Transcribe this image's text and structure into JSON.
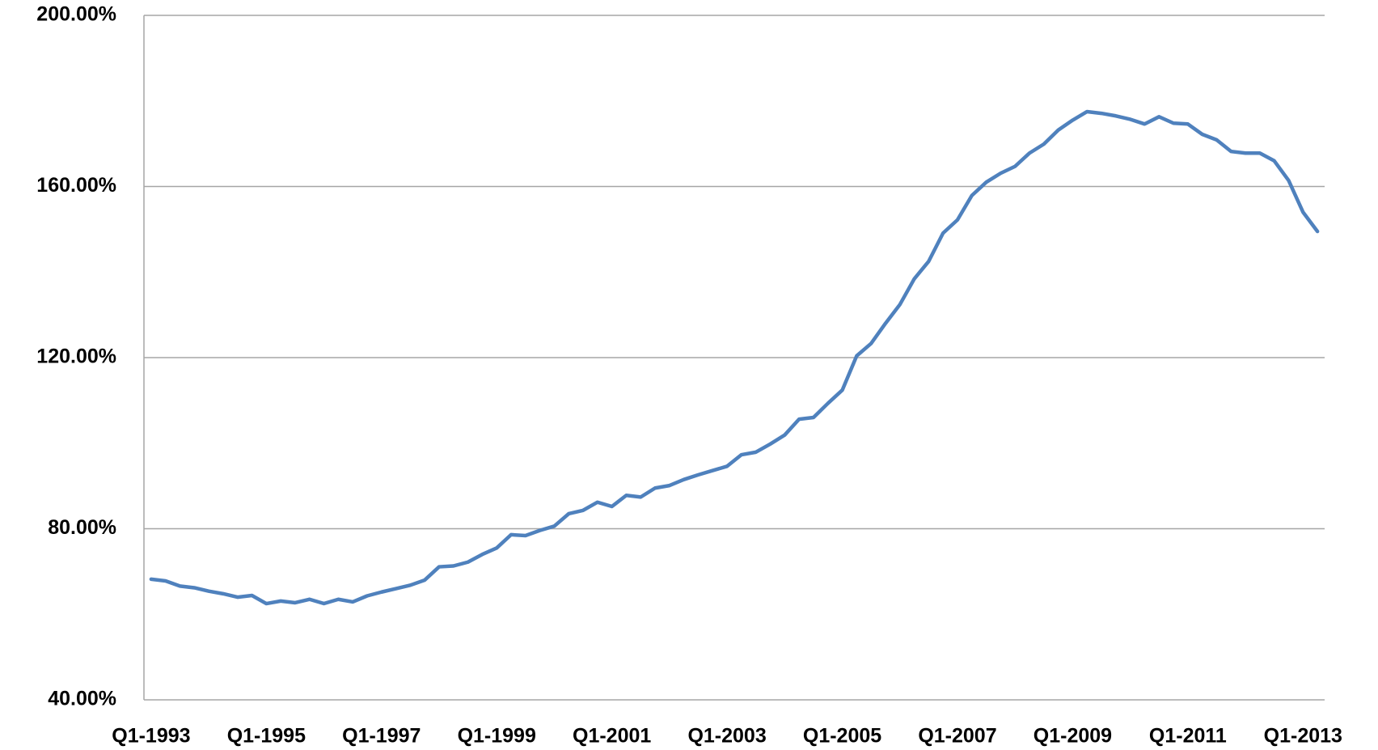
{
  "chart_data": {
    "type": "line",
    "categories": [
      "Q1-1993",
      null,
      null,
      null,
      null,
      null,
      null,
      null,
      "Q1-1995",
      null,
      null,
      null,
      null,
      null,
      null,
      null,
      "Q1-1997",
      null,
      null,
      null,
      null,
      null,
      null,
      null,
      "Q1-1999",
      null,
      null,
      null,
      null,
      null,
      null,
      null,
      "Q1-2001",
      null,
      null,
      null,
      null,
      null,
      null,
      null,
      "Q1-2003",
      null,
      null,
      null,
      null,
      null,
      null,
      null,
      "Q1-2005",
      null,
      null,
      null,
      null,
      null,
      null,
      null,
      "Q1-2007",
      null,
      null,
      null,
      null,
      null,
      null,
      null,
      "Q1-2009",
      null,
      null,
      null,
      null,
      null,
      null,
      null,
      "Q1-2011",
      null,
      null,
      null,
      null,
      null,
      null,
      null,
      "Q1-2013",
      null
    ],
    "series": [
      {
        "color": "#4f81bd",
        "values": [
          68.2,
          67.8,
          66.6,
          66.2,
          65.4,
          64.8,
          64.0,
          64.4,
          62.5,
          63.1,
          62.7,
          63.5,
          62.5,
          63.5,
          62.9,
          64.3,
          65.2,
          66.0,
          66.8,
          68.0,
          71.1,
          71.3,
          72.2,
          74.0,
          75.5,
          78.6,
          78.4,
          79.6,
          80.6,
          83.5,
          84.3,
          86.2,
          85.2,
          87.8,
          87.4,
          89.5,
          90.1,
          91.5,
          92.6,
          93.6,
          94.6,
          97.3,
          97.9,
          99.8,
          101.9,
          105.6,
          106.0,
          109.3,
          112.4,
          120.4,
          123.3,
          128.0,
          132.4,
          138.4,
          142.5,
          149.1,
          152.2,
          157.9,
          161.0,
          163.1,
          164.7,
          167.8,
          169.9,
          173.2,
          175.5,
          177.5,
          177.1,
          176.5,
          175.7,
          174.6,
          176.3,
          174.8,
          174.6,
          172.2,
          170.9,
          168.2,
          167.8,
          167.8,
          166.0,
          161.4,
          154.0,
          149.5
        ]
      }
    ],
    "ylim": [
      40,
      200
    ],
    "yticks": [
      {
        "value": 40,
        "label": "40.00%"
      },
      {
        "value": 80,
        "label": "80.00%"
      },
      {
        "value": 120,
        "label": "120.00%"
      },
      {
        "value": 160,
        "label": "160.00%"
      },
      {
        "value": 200,
        "label": "200.00%"
      }
    ],
    "grid": true
  }
}
